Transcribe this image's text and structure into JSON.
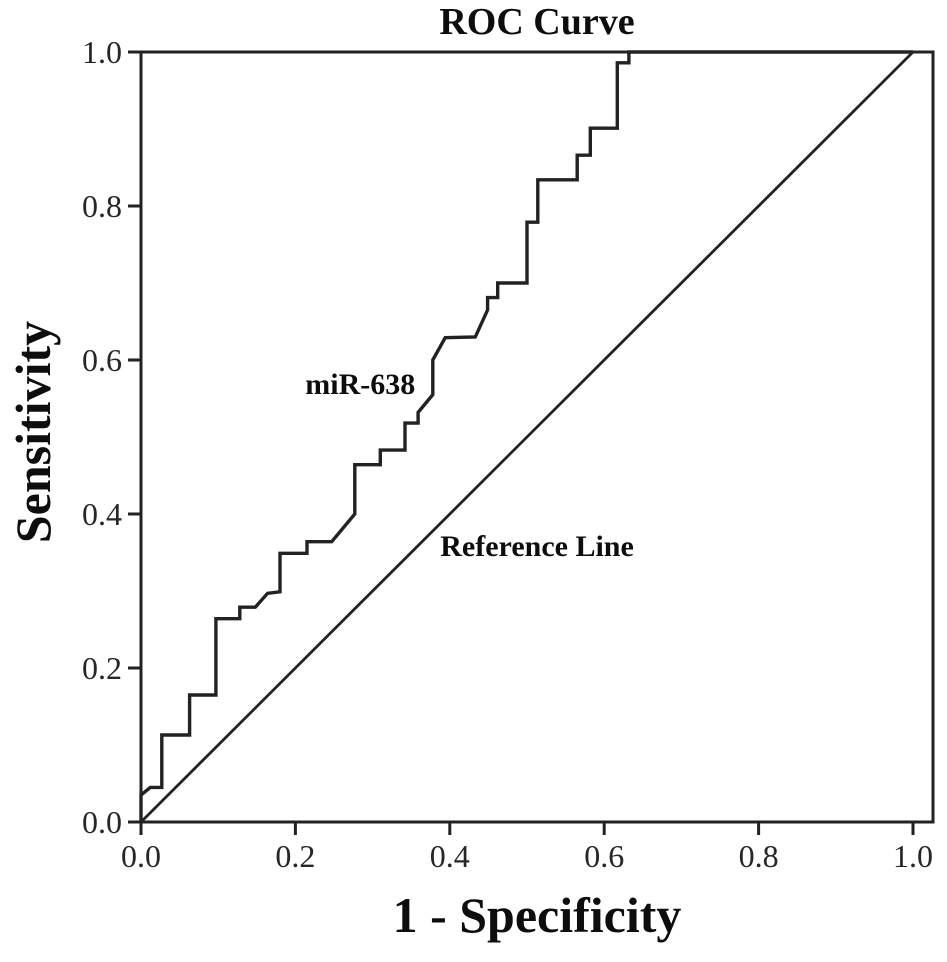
{
  "figure_title": "ROC Curve",
  "chart_data": {
    "type": "line",
    "subtype": "roc",
    "title": "ROC Curve",
    "xlabel": "1 - Specificity",
    "ylabel": "Sensitivity",
    "xlim": [
      0.0,
      1.0
    ],
    "ylim": [
      0.0,
      1.0
    ],
    "x_ticks": [
      "0.0",
      "0.2",
      "0.4",
      "0.6",
      "0.8",
      "1.0"
    ],
    "y_ticks": [
      "0.0",
      "0.2",
      "0.4",
      "0.6",
      "0.8",
      "1.0"
    ],
    "grid": false,
    "frame": true,
    "legend_position": "inline-annotations",
    "colors": {
      "line": "#222222",
      "title_text": "#0d0d0d",
      "tick_text": "#262626",
      "background": "#ffffff"
    },
    "series": [
      {
        "name": "miR-638",
        "style": "step",
        "points": [
          [
            0.0,
            0.0
          ],
          [
            0.0,
            0.035
          ],
          [
            0.012,
            0.045
          ],
          [
            0.027,
            0.045
          ],
          [
            0.027,
            0.113
          ],
          [
            0.063,
            0.113
          ],
          [
            0.063,
            0.165
          ],
          [
            0.097,
            0.165
          ],
          [
            0.097,
            0.264
          ],
          [
            0.128,
            0.264
          ],
          [
            0.128,
            0.279
          ],
          [
            0.148,
            0.279
          ],
          [
            0.164,
            0.297
          ],
          [
            0.18,
            0.299
          ],
          [
            0.18,
            0.349
          ],
          [
            0.215,
            0.349
          ],
          [
            0.215,
            0.364
          ],
          [
            0.247,
            0.364
          ],
          [
            0.277,
            0.4
          ],
          [
            0.277,
            0.464
          ],
          [
            0.31,
            0.464
          ],
          [
            0.31,
            0.483
          ],
          [
            0.342,
            0.483
          ],
          [
            0.342,
            0.518
          ],
          [
            0.359,
            0.518
          ],
          [
            0.359,
            0.532
          ],
          [
            0.378,
            0.555
          ],
          [
            0.378,
            0.6
          ],
          [
            0.394,
            0.629
          ],
          [
            0.433,
            0.63
          ],
          [
            0.449,
            0.665
          ],
          [
            0.449,
            0.681
          ],
          [
            0.462,
            0.681
          ],
          [
            0.462,
            0.7
          ],
          [
            0.5,
            0.7
          ],
          [
            0.5,
            0.779
          ],
          [
            0.514,
            0.779
          ],
          [
            0.514,
            0.834
          ],
          [
            0.565,
            0.834
          ],
          [
            0.565,
            0.866
          ],
          [
            0.582,
            0.866
          ],
          [
            0.582,
            0.901
          ],
          [
            0.617,
            0.901
          ],
          [
            0.617,
            0.986
          ],
          [
            0.632,
            0.986
          ],
          [
            0.632,
            1.0
          ],
          [
            1.0,
            1.0
          ]
        ]
      },
      {
        "name": "Reference Line",
        "style": "straight",
        "points": [
          [
            0.0,
            0.0
          ],
          [
            1.0,
            1.0
          ]
        ]
      }
    ],
    "annotations": [
      {
        "text": "miR-638",
        "x": 0.284,
        "y": 0.568
      },
      {
        "text": "Reference Line",
        "x": 0.513,
        "y": 0.357
      }
    ]
  }
}
